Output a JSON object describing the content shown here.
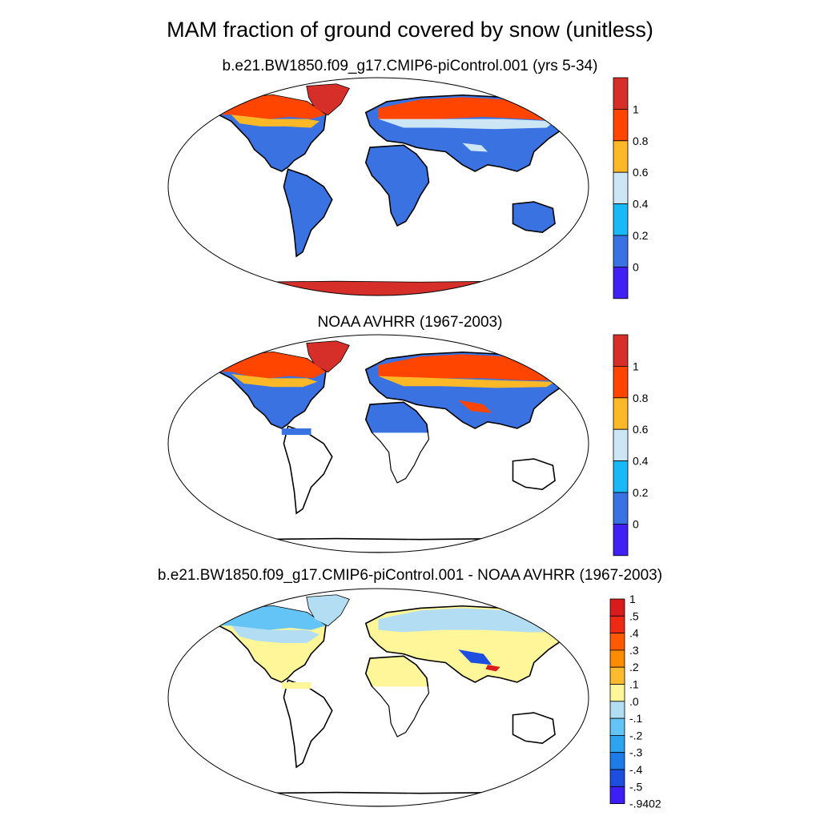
{
  "title": "MAM fraction of ground covered by snow (unitless)",
  "panels": [
    {
      "title": "b.e21.BW1850.f09_g17.CMIP6-piControl.001 (yrs 5-34)"
    },
    {
      "title": "NOAA AVHRR (1967-2003)"
    },
    {
      "title": "b.e21.BW1850.f09_g17.CMIP6-piControl.001 - NOAA AVHRR (1967-2003)"
    }
  ],
  "chart_data": [
    {
      "type": "heatmap",
      "title": "b.e21.BW1850.f09_g17.CMIP6-piControl.001 (yrs 5-34)",
      "colorbar": {
        "labels": [
          "1",
          "0.8",
          "0.6",
          "0.4",
          "0.2",
          "0"
        ],
        "colors": [
          "#d62f2a",
          "#ff4500",
          "#fdb827",
          "#cce6f5",
          "#19b8f7",
          "#3a72e2",
          "#4020f3"
        ]
      },
      "colors_meaning": {
        "ocean": "#ffffff",
        "land_snow_free": "#3a72e2"
      }
    },
    {
      "type": "heatmap",
      "title": "NOAA AVHRR (1967-2003)",
      "colorbar": {
        "labels": [
          "1",
          "0.8",
          "0.6",
          "0.4",
          "0.2",
          "0"
        ],
        "colors": [
          "#d62f2a",
          "#ff4500",
          "#fdb827",
          "#cce6f5",
          "#19b8f7",
          "#3a72e2",
          "#4020f3"
        ]
      }
    },
    {
      "type": "heatmap",
      "title": "b.e21.BW1850.f09_g17.CMIP6-piControl.001 - NOAA AVHRR (1967-2003)",
      "colorbar": {
        "labels": [
          "1",
          ".5",
          ".4",
          ".3",
          ".2",
          ".1",
          ".0",
          "-.1",
          "-.2",
          "-.3",
          "-.4",
          "-.5",
          "-.9402"
        ],
        "colors": [
          "#d81c1c",
          "#ee2a14",
          "#ff5a00",
          "#ff8c00",
          "#fdbb2d",
          "#fff69a",
          "#b2ddf2",
          "#64c4f5",
          "#2ea4f0",
          "#1d7ce8",
          "#1d4ee0",
          "#3d1ef5"
        ]
      }
    }
  ]
}
